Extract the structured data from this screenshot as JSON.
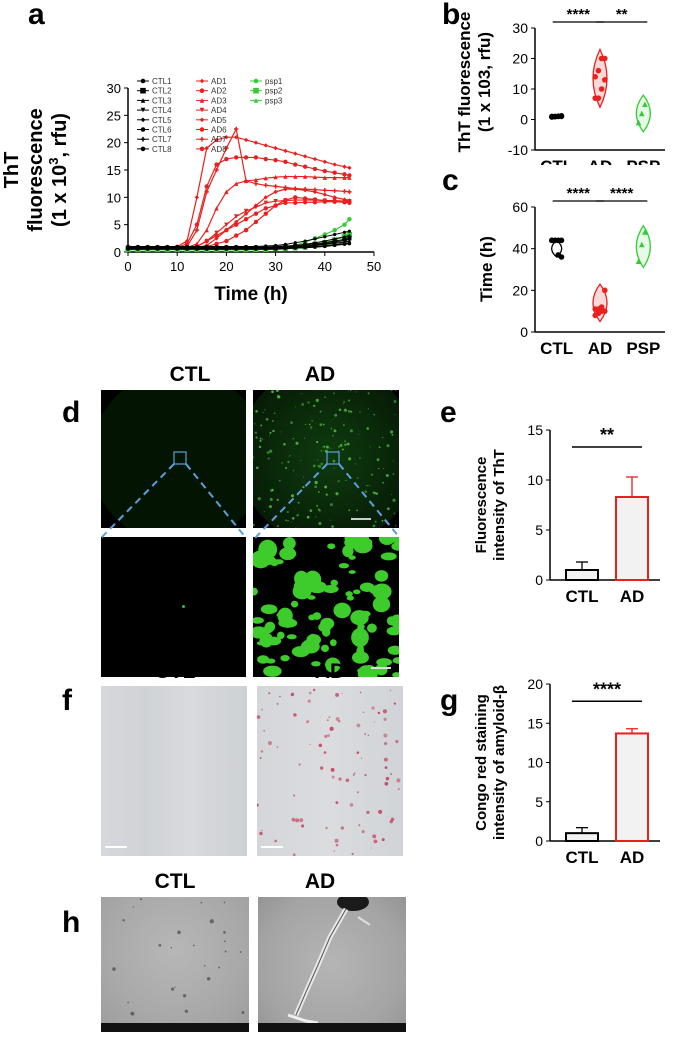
{
  "panel_letters": {
    "a": "a",
    "b": "b",
    "c": "c",
    "d": "d",
    "e": "e",
    "f": "f",
    "g": "g",
    "h": "h"
  },
  "colors": {
    "ctl": "#000000",
    "ad": "#e8211f",
    "psp": "#33cc33",
    "bar_fill": "#f2f2f2"
  },
  "image_captions": {
    "d_ctl": "CTL",
    "d_ad": "AD",
    "f_ctl": "CTL",
    "f_ad": "AD",
    "h_ctl": "CTL",
    "h_ad": "AD"
  },
  "chart_data": [
    {
      "id": "a",
      "type": "line",
      "ylabel_lines": [
        "ThT",
        "fluorescence",
        "(1 x 10",
        ", rfu)"
      ],
      "ylabel_sup": "3",
      "xlabel": "Time (h)",
      "xlim": [
        0,
        50
      ],
      "ylim": [
        0,
        30
      ],
      "xticks": [
        0,
        10,
        20,
        30,
        40,
        50
      ],
      "yticks": [
        0,
        5,
        10,
        15,
        20,
        25,
        30
      ],
      "legend_placement": "top-left",
      "legend": [
        {
          "name": "CTL1",
          "group": "ctl",
          "marker": "circle"
        },
        {
          "name": "CTL2",
          "group": "ctl",
          "marker": "square"
        },
        {
          "name": "CTL3",
          "group": "ctl",
          "marker": "triangle"
        },
        {
          "name": "CTL4",
          "group": "ctl",
          "marker": "triangle-down"
        },
        {
          "name": "CTL5",
          "group": "ctl",
          "marker": "diamond"
        },
        {
          "name": "CTL6",
          "group": "ctl",
          "marker": "circle"
        },
        {
          "name": "CTL7",
          "group": "ctl",
          "marker": "cross"
        },
        {
          "name": "CTL8",
          "group": "ctl",
          "marker": "circle"
        },
        {
          "name": "AD1",
          "group": "ad",
          "marker": "diamond"
        },
        {
          "name": "AD2",
          "group": "ad",
          "marker": "circle"
        },
        {
          "name": "AD3",
          "group": "ad",
          "marker": "triangle"
        },
        {
          "name": "AD4",
          "group": "ad",
          "marker": "triangle-down"
        },
        {
          "name": "AD5",
          "group": "ad",
          "marker": "diamond"
        },
        {
          "name": "AD6",
          "group": "ad",
          "marker": "circle"
        },
        {
          "name": "AD7",
          "group": "ad",
          "marker": "cross"
        },
        {
          "name": "AD8",
          "group": "ad",
          "marker": "circle"
        },
        {
          "name": "psp1",
          "group": "psp",
          "marker": "circle"
        },
        {
          "name": "psp2",
          "group": "psp",
          "marker": "square"
        },
        {
          "name": "psp3",
          "group": "psp",
          "marker": "triangle"
        }
      ],
      "x": [
        0,
        2,
        4,
        6,
        8,
        10,
        12,
        14,
        16,
        18,
        20,
        22,
        24,
        26,
        28,
        30,
        32,
        34,
        36,
        38,
        40,
        42,
        44,
        45
      ],
      "series": [
        {
          "name": "AD1",
          "group": "ad",
          "values": [
            0.6,
            0.6,
            0.6,
            0.6,
            0.7,
            1,
            2,
            10,
            19,
            20.5,
            21,
            21,
            20.5,
            20,
            19.5,
            19,
            18.5,
            18,
            17.5,
            17,
            16.5,
            16,
            15.6,
            15.4
          ]
        },
        {
          "name": "AD2",
          "group": "ad",
          "values": [
            0.6,
            0.6,
            0.6,
            0.6,
            0.6,
            0.8,
            1.5,
            5,
            12,
            16,
            17,
            17.3,
            17.3,
            17.3,
            17,
            16.8,
            16.5,
            16,
            15.6,
            15.2,
            14.8,
            14.5,
            14.2,
            14
          ]
        },
        {
          "name": "AD3",
          "group": "ad",
          "values": [
            0.6,
            0.6,
            0.6,
            0.6,
            0.6,
            0.6,
            0.8,
            1.5,
            4,
            8,
            11,
            12.5,
            13,
            13.2,
            13.5,
            13.7,
            13.8,
            13.8,
            13.8,
            13.7,
            13.6,
            13.6,
            13.6,
            13.6
          ]
        },
        {
          "name": "AD4",
          "group": "ad",
          "values": [
            0.6,
            0.6,
            0.6,
            0.6,
            0.6,
            0.6,
            0.7,
            1,
            2,
            3.5,
            5,
            6.5,
            7.5,
            8.2,
            9,
            9.3,
            9.4,
            9.5,
            9.5,
            9.5,
            9.4,
            9.4,
            9.3,
            9.3
          ]
        },
        {
          "name": "AD5",
          "group": "ad",
          "values": [
            0.6,
            0.6,
            0.6,
            0.6,
            0.6,
            0.6,
            0.6,
            0.8,
            1.2,
            2.5,
            4,
            5.5,
            7,
            8.5,
            10,
            11,
            11.5,
            11.5,
            11.3,
            11,
            10.5,
            10,
            9.6,
            9.4
          ]
        },
        {
          "name": "AD6",
          "group": "ad",
          "values": [
            0.6,
            0.6,
            0.6,
            0.6,
            0.6,
            0.6,
            0.6,
            0.7,
            1,
            1.5,
            2,
            3,
            4,
            5.5,
            7,
            8.5,
            9.5,
            10,
            9.8,
            9.6,
            9.4,
            9.2,
            9.1,
            9
          ]
        },
        {
          "name": "AD7",
          "group": "ad",
          "values": [
            0.6,
            0.6,
            0.6,
            0.6,
            0.6,
            0.6,
            1,
            4,
            11,
            15,
            19,
            22.5,
            13,
            12.5,
            12.2,
            12,
            11.8,
            11.6,
            11.5,
            11.4,
            11.3,
            11.2,
            11.1,
            11
          ]
        },
        {
          "name": "AD8",
          "group": "ad",
          "values": [
            0.6,
            0.6,
            0.6,
            0.6,
            0.6,
            0.6,
            0.7,
            1,
            2,
            3,
            4,
            5,
            6,
            7,
            8,
            8.5,
            9,
            9,
            9.1,
            9.1,
            9.2,
            9.2,
            9.2,
            9.2
          ]
        },
        {
          "name": "psp1",
          "group": "psp",
          "values": [
            0.5,
            0.5,
            0.5,
            0.5,
            0.5,
            0.5,
            0.5,
            0.5,
            0.5,
            0.5,
            0.5,
            0.5,
            0.5,
            0.5,
            0.6,
            0.7,
            0.9,
            1.2,
            1.8,
            2.5,
            3.2,
            4,
            5,
            6
          ]
        },
        {
          "name": "psp2",
          "group": "psp",
          "values": [
            0.5,
            0.5,
            0.5,
            0.5,
            0.5,
            0.5,
            0.5,
            0.5,
            0.5,
            0.5,
            0.5,
            0.5,
            0.5,
            0.5,
            0.5,
            0.6,
            0.7,
            0.8,
            1,
            1.3,
            1.7,
            2.2,
            2.8,
            3.2
          ]
        },
        {
          "name": "psp3",
          "group": "psp",
          "values": [
            0.4,
            0.4,
            0.4,
            0.4,
            0.4,
            0.4,
            0.4,
            0.4,
            0.4,
            0.4,
            0.4,
            0.4,
            0.4,
            0.4,
            0.5,
            0.5,
            0.6,
            0.7,
            0.8,
            1,
            1.2,
            1.4,
            1.7,
            1.9
          ]
        },
        {
          "name": "CTL1",
          "group": "ctl",
          "values": [
            1.0,
            1.0,
            1.0,
            1.0,
            1.0,
            1.0,
            1.0,
            1.0,
            1.0,
            1.0,
            1.0,
            1.0,
            1.0,
            1.0,
            1.1,
            1.2,
            1.4,
            1.7,
            2.0,
            2.4,
            2.8,
            3.2,
            3.6,
            3.8
          ]
        },
        {
          "name": "CTL2",
          "group": "ctl",
          "values": [
            0.8,
            0.8,
            0.8,
            0.8,
            0.8,
            0.8,
            0.8,
            0.8,
            0.8,
            0.8,
            0.8,
            0.8,
            0.8,
            0.8,
            0.8,
            0.9,
            1.0,
            1.1,
            1.3,
            1.5,
            1.7,
            2.0,
            2.3,
            2.5
          ]
        },
        {
          "name": "CTL3",
          "group": "ctl",
          "values": [
            0.7,
            0.7,
            0.7,
            0.7,
            0.7,
            0.7,
            0.7,
            0.7,
            0.7,
            0.7,
            0.7,
            0.7,
            0.7,
            0.7,
            0.7,
            0.7,
            0.8,
            0.9,
            1.0,
            1.2,
            1.4,
            1.6,
            1.8,
            2.0
          ]
        },
        {
          "name": "CTL4",
          "group": "ctl",
          "values": [
            0.6,
            0.6,
            0.6,
            0.6,
            0.6,
            0.6,
            0.6,
            0.6,
            0.6,
            0.6,
            0.6,
            0.6,
            0.6,
            0.6,
            0.6,
            0.6,
            0.7,
            0.8,
            0.9,
            1.0,
            1.1,
            1.3,
            1.5,
            1.7
          ]
        },
        {
          "name": "CTL5",
          "group": "ctl",
          "values": [
            0.9,
            0.9,
            0.9,
            0.9,
            0.9,
            0.9,
            0.9,
            0.9,
            0.9,
            0.9,
            0.9,
            0.9,
            0.9,
            0.9,
            0.9,
            1.0,
            1.1,
            1.2,
            1.4,
            1.7,
            2.0,
            2.4,
            2.8,
            3.0
          ]
        },
        {
          "name": "CTL6",
          "group": "ctl",
          "values": [
            0.5,
            0.5,
            0.5,
            0.5,
            0.5,
            0.5,
            0.5,
            0.5,
            0.5,
            0.5,
            0.5,
            0.5,
            0.5,
            0.5,
            0.5,
            0.5,
            0.6,
            0.7,
            0.8,
            0.9,
            1.0,
            1.2,
            1.4,
            1.5
          ]
        },
        {
          "name": "CTL7",
          "group": "ctl",
          "values": [
            0.7,
            0.7,
            0.7,
            0.7,
            0.7,
            0.7,
            0.7,
            0.7,
            0.7,
            0.7,
            0.7,
            0.7,
            0.7,
            0.7,
            0.7,
            0.8,
            0.9,
            1.0,
            1.1,
            1.3,
            1.5,
            1.8,
            2.1,
            2.3
          ]
        },
        {
          "name": "CTL8",
          "group": "ctl",
          "values": [
            0.6,
            0.6,
            0.6,
            0.6,
            0.6,
            0.6,
            0.6,
            0.6,
            0.6,
            0.6,
            0.6,
            0.6,
            0.6,
            0.6,
            0.6,
            0.6,
            0.7,
            0.7,
            0.8,
            0.9,
            1.1,
            1.3,
            1.5,
            1.6
          ]
        }
      ]
    },
    {
      "id": "b",
      "type": "scatter",
      "ylabel_lines": [
        "ThT fluorescence",
        "(1 x 103, rfu)"
      ],
      "categories": [
        "CTL",
        "AD",
        "PSP"
      ],
      "ylim": [
        -10,
        30
      ],
      "yticks": [
        -10,
        0,
        10,
        20,
        30
      ],
      "groups": [
        {
          "name": "CTL",
          "values": [
            0.8,
            1,
            1,
            1.2,
            1,
            0.9,
            1.1,
            1
          ]
        },
        {
          "name": "AD",
          "values": [
            7,
            7,
            10,
            13,
            14,
            16,
            20,
            20
          ]
        },
        {
          "name": "PSP",
          "values": [
            -1,
            2,
            5
          ]
        }
      ],
      "significance": [
        {
          "pair": [
            "CTL",
            "AD"
          ],
          "label": "****"
        },
        {
          "pair": [
            "AD",
            "PSP"
          ],
          "label": "**"
        }
      ]
    },
    {
      "id": "c",
      "type": "scatter",
      "ylabel": "Time (h)",
      "categories": [
        "CTL",
        "AD",
        "PSP"
      ],
      "ylim": [
        0,
        60
      ],
      "yticks": [
        0,
        20,
        40,
        60
      ],
      "groups": [
        {
          "name": "CTL",
          "values": [
            44,
            44,
            44,
            44,
            44,
            44,
            37,
            36
          ]
        },
        {
          "name": "AD",
          "values": [
            8,
            9,
            10,
            10,
            11,
            11,
            12,
            20
          ]
        },
        {
          "name": "PSP",
          "values": [
            34,
            42,
            48
          ]
        }
      ],
      "significance": [
        {
          "pair": [
            "CTL",
            "AD"
          ],
          "label": "****"
        },
        {
          "pair": [
            "AD",
            "PSP"
          ],
          "label": "****"
        }
      ]
    },
    {
      "id": "e",
      "type": "bar",
      "ylabel_lines": [
        "Fluorescence",
        "intensity of ThT"
      ],
      "categories": [
        "CTL",
        "AD"
      ],
      "values": [
        1,
        8.3
      ],
      "errors": [
        0.8,
        2.0
      ],
      "ylim": [
        0,
        15
      ],
      "yticks": [
        0,
        5,
        10,
        15
      ],
      "significance": [
        {
          "pair": [
            "CTL",
            "AD"
          ],
          "label": "**"
        }
      ]
    },
    {
      "id": "g",
      "type": "bar",
      "ylabel_lines": [
        "Congo red staining",
        "intensity of amyloid-β"
      ],
      "categories": [
        "CTL",
        "AD"
      ],
      "values": [
        1,
        13.7
      ],
      "errors": [
        0.7,
        0.6
      ],
      "ylim": [
        0,
        20
      ],
      "yticks": [
        0,
        5,
        10,
        15,
        20
      ],
      "significance": [
        {
          "pair": [
            "CTL",
            "AD"
          ],
          "label": "****"
        }
      ]
    }
  ]
}
